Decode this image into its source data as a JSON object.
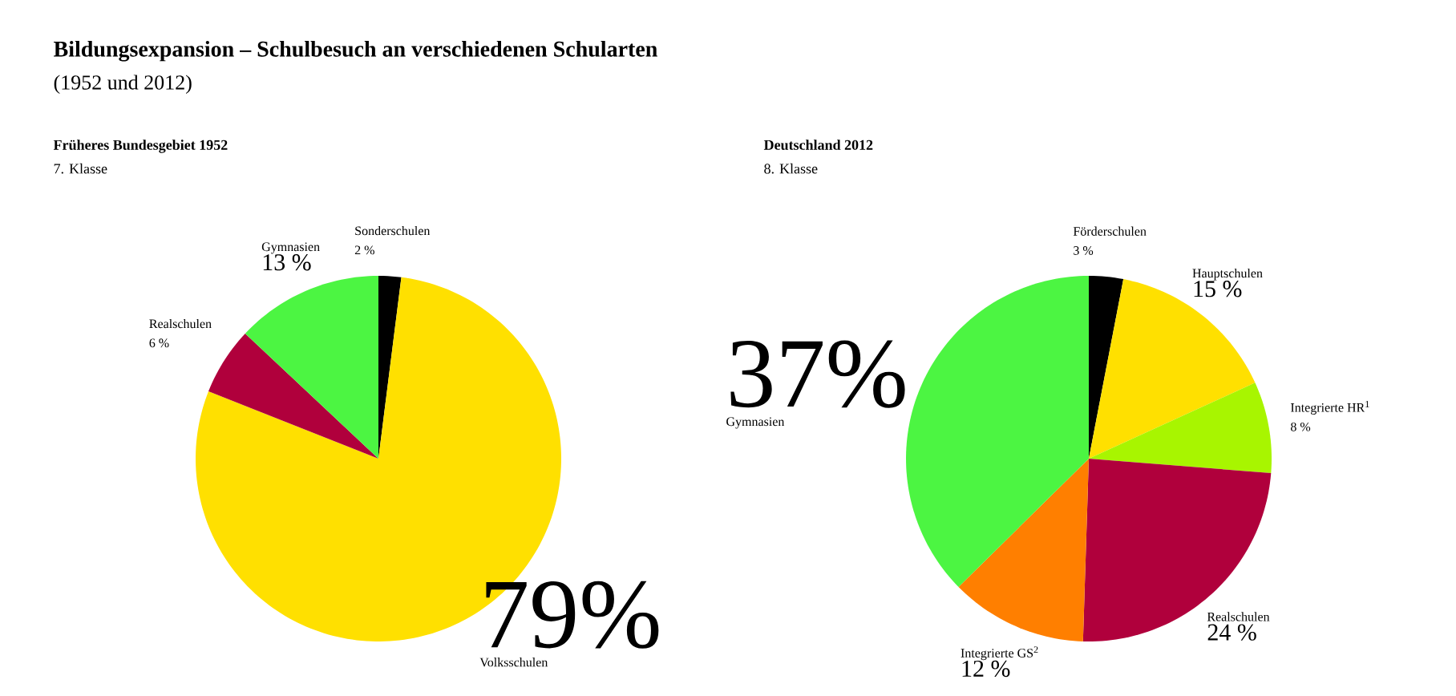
{
  "chart_data": [
    {
      "type": "pie",
      "title": "Früheres Bundesgebiet 1952",
      "subtitle": "7. Klasse",
      "annotations": [
        "Bildungsexpansion – Schulbesuch an verschiedenen Schularten",
        "(1952 und 2012)"
      ],
      "categories": [
        "Sonderschulen",
        "Volksschulen",
        "Realschulen",
        "Gymnasien"
      ],
      "values": [
        2,
        79,
        6,
        13
      ],
      "value_labels": [
        "2 %",
        "79%",
        "6 %",
        "13 %"
      ],
      "colors": [
        "#000000",
        "#ffe000",
        "#b0003c",
        "#4cf542"
      ]
    },
    {
      "type": "pie",
      "title": "Deutschland 2012",
      "subtitle": "8. Klasse",
      "categories": [
        "Förderschulen",
        "Hauptschulen",
        "Integrierte HR$^{1}$",
        "Realschulen",
        "Integrierte GS$^{2}$",
        "Gymnasien"
      ],
      "values": [
        3,
        15,
        8,
        24,
        12,
        37
      ],
      "value_labels": [
        "3 %",
        "15 %",
        "8 %",
        "24 %",
        "12 %",
        "37%"
      ],
      "colors": [
        "#000000",
        "#ffe000",
        "#a8f500",
        "#b0003c",
        "#ff7f00",
        "#4cf542"
      ]
    }
  ]
}
